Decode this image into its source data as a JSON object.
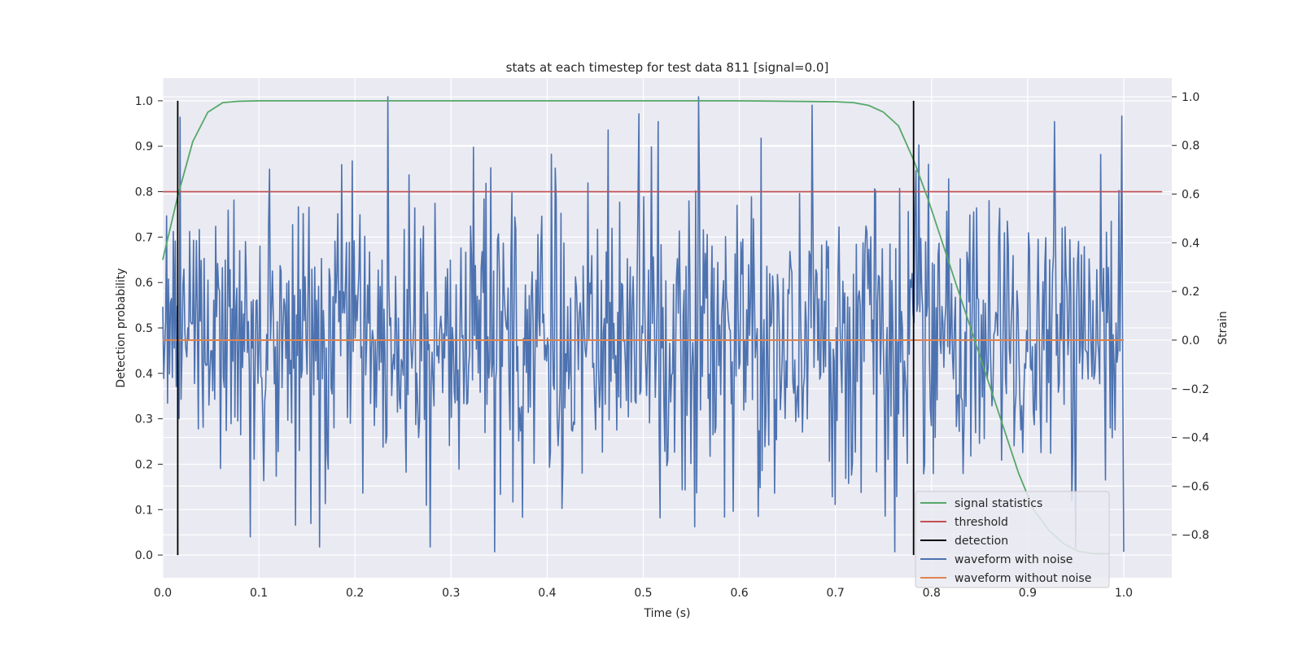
{
  "chart_data": {
    "type": "line",
    "title": "stats at each timestep for test data 811 [signal=0.0]",
    "xlabel": "Time (s)",
    "ylabel": "Detection probability",
    "y2label": "Strain",
    "xlim": [
      0.0,
      1.05
    ],
    "ylim": [
      -0.05,
      1.05
    ],
    "y2lim": [
      -0.9767,
      1.0767
    ],
    "xticks": [
      0.0,
      0.1,
      0.2,
      0.3,
      0.4,
      0.5,
      0.6,
      0.7,
      0.8,
      0.9,
      1.0
    ],
    "xtick_labels": [
      "0.0",
      "0.1",
      "0.2",
      "0.3",
      "0.4",
      "0.5",
      "0.6",
      "0.7",
      "0.8",
      "0.9",
      "1.0"
    ],
    "yticks": [
      0.0,
      0.1,
      0.2,
      0.3,
      0.4,
      0.5,
      0.6,
      0.7,
      0.8,
      0.9,
      1.0
    ],
    "ytick_labels": [
      "0.0",
      "0.1",
      "0.2",
      "0.3",
      "0.4",
      "0.5",
      "0.6",
      "0.7",
      "0.8",
      "0.9",
      "1.0"
    ],
    "y2ticks": [
      -0.8,
      -0.6,
      -0.4,
      -0.2,
      0.0,
      0.2,
      0.4,
      0.6,
      0.8,
      1.0
    ],
    "y2tick_labels": [
      "−0.8",
      "−0.6",
      "−0.4",
      "−0.2",
      "0.0",
      "0.2",
      "0.4",
      "0.6",
      "0.8",
      "1.0"
    ],
    "grid": true,
    "legend_position": "bottom-right",
    "series": [
      {
        "name": "signal statistics",
        "color": "#55a868",
        "axis": "left",
        "x": [
          0.0,
          0.0156,
          0.0312,
          0.0469,
          0.0625,
          0.0781,
          0.1,
          0.2,
          0.3,
          0.4,
          0.5,
          0.6,
          0.7,
          0.7188,
          0.7344,
          0.75,
          0.7656,
          0.7813,
          0.7969,
          0.8125,
          0.8281,
          0.8438,
          0.8594,
          0.875,
          0.8906,
          0.9062,
          0.9219,
          0.9375,
          0.9531,
          0.9688,
          0.9844
        ],
        "values": [
          0.65,
          0.79,
          0.91,
          0.975,
          0.996,
          0.999,
          1.0,
          1.0,
          1.0,
          1.0,
          1.0,
          1.0,
          0.998,
          0.996,
          0.99,
          0.975,
          0.945,
          0.87,
          0.78,
          0.68,
          0.58,
          0.48,
          0.38,
          0.28,
          0.18,
          0.1,
          0.055,
          0.025,
          0.008,
          0.003,
          0.003
        ]
      },
      {
        "name": "threshold",
        "color": "#c44e52",
        "axis": "left",
        "x": [
          0.0,
          1.04
        ],
        "values": [
          0.8,
          0.8
        ]
      },
      {
        "name": "detection",
        "color": "#000000",
        "axis": "left",
        "type": "vline",
        "x": [
          0.0156,
          0.7813
        ],
        "range": [
          0.0,
          1.0
        ]
      },
      {
        "name": "waveform with noise",
        "color": "#4c72b0",
        "axis": "right",
        "generated": "dense noise, approx. 1000 samples between 0.0 and 1.0 s, roughly within −0.87 to 1.0 strain",
        "x_start": 0.0,
        "x_end": 1.0,
        "num_samples": 1000,
        "value_range": [
          -0.87,
          1.0
        ],
        "peaks": [
          [
            0.234,
            1.0
          ],
          [
            0.495,
            0.93
          ],
          [
            0.623,
            0.83
          ],
          [
            0.345,
            -0.87
          ],
          [
            0.163,
            -0.85
          ],
          [
            0.278,
            -0.85
          ]
        ]
      },
      {
        "name": "waveform without noise",
        "color": "#dd8452",
        "axis": "right",
        "x": [
          0.0,
          1.0
        ],
        "values": [
          0.0,
          0.0
        ]
      }
    ]
  }
}
